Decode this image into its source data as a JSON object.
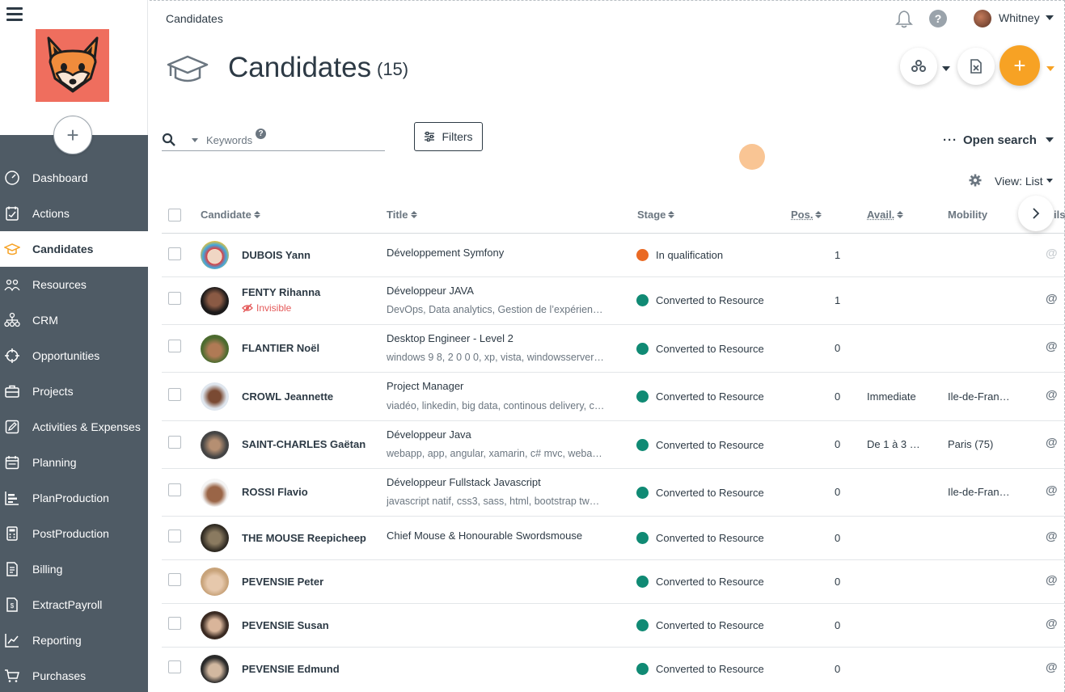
{
  "sidebar": {
    "add_label": "+",
    "items": [
      {
        "label": "Dashboard",
        "icon": "dashboard-icon"
      },
      {
        "label": "Actions",
        "icon": "actions-icon"
      },
      {
        "label": "Candidates",
        "icon": "graduation-cap-icon"
      },
      {
        "label": "Resources",
        "icon": "people-icon"
      },
      {
        "label": "CRM",
        "icon": "org-chart-icon"
      },
      {
        "label": "Opportunities",
        "icon": "target-icon"
      },
      {
        "label": "Projects",
        "icon": "briefcase-icon"
      },
      {
        "label": "Activities & Expenses",
        "icon": "edit-icon"
      },
      {
        "label": "Planning",
        "icon": "calendar-icon"
      },
      {
        "label": "PlanProduction",
        "icon": "bar-chart-icon"
      },
      {
        "label": "PostProduction",
        "icon": "calculator-icon"
      },
      {
        "label": "Billing",
        "icon": "invoice-icon"
      },
      {
        "label": "ExtractPayroll",
        "icon": "payroll-icon"
      },
      {
        "label": "Reporting",
        "icon": "line-chart-icon"
      },
      {
        "label": "Purchases",
        "icon": "cart-icon"
      }
    ],
    "active_index": 2
  },
  "header": {
    "breadcrumb": "Candidates",
    "user_name": "Whitney",
    "help_label": "?"
  },
  "page": {
    "title": "Candidates",
    "count": "(15)",
    "add_label": "+"
  },
  "search": {
    "placeholder": "Keywords",
    "help_label": "?",
    "filters_label": "Filters",
    "open_search_dots": "···",
    "open_search_label": "Open search",
    "view_label": "View: List"
  },
  "table": {
    "columns": {
      "candidate": "Candidate",
      "title": "Title",
      "stage": "Stage",
      "pos": "Pos.",
      "avail": "Avail.",
      "mobility": "Mobility",
      "cut": "ils"
    },
    "colors": {
      "in_qualification": "#ea6a24",
      "converted": "#108a74"
    },
    "rows": [
      {
        "name": "DUBOIS Yann",
        "title": "Développement Symfony",
        "skills": "",
        "stage": "In qualification",
        "pos": "1",
        "avail": "",
        "mobility": "",
        "invisible": "",
        "at": "@"
      },
      {
        "name": "FENTY Rihanna",
        "title": "Développeur JAVA",
        "skills": "DevOps, Data analytics, Gestion de l’expérien…",
        "stage": "Converted to Resource",
        "pos": "1",
        "avail": "",
        "mobility": "",
        "invisible": "Invisible",
        "at": "@"
      },
      {
        "name": "FLANTIER Noël",
        "title": "Desktop Engineer - Level 2",
        "skills": "windows 9 8, 2 0 0 0, xp, vista, windowsserver…",
        "stage": "Converted to Resource",
        "pos": "0",
        "avail": "",
        "mobility": "",
        "invisible": "",
        "at": "@"
      },
      {
        "name": "CROWL Jeannette",
        "title": "Project Manager",
        "skills": "viadéo, linkedin, big data, continous delivery, c…",
        "stage": "Converted to Resource",
        "pos": "0",
        "avail": "Immediate",
        "mobility": "Ile-de-Fran…",
        "invisible": "",
        "at": "@"
      },
      {
        "name": "SAINT-CHARLES Gaëtan",
        "title": "Développeur Java",
        "skills": "webapp, app, angular, xamarin, c# mvc, weba…",
        "stage": "Converted to Resource",
        "pos": "0",
        "avail": "De 1 à 3 …",
        "mobility": "Paris (75)",
        "invisible": "",
        "at": "@"
      },
      {
        "name": "ROSSI Flavio",
        "title": "Développeur Fullstack Javascript",
        "skills": "javascript natif, css3, sass, html, bootstrap tw…",
        "stage": "Converted to Resource",
        "pos": "0",
        "avail": "",
        "mobility": "Ile-de-Fran…",
        "invisible": "",
        "at": "@"
      },
      {
        "name": "THE MOUSE Reepicheep",
        "title": "Chief Mouse & Honourable Swordsmouse",
        "skills": "",
        "stage": "Converted to Resource",
        "pos": "0",
        "avail": "",
        "mobility": "",
        "invisible": "",
        "at": "@"
      },
      {
        "name": "PEVENSIE Peter",
        "title": "",
        "skills": "",
        "stage": "Converted to Resource",
        "pos": "0",
        "avail": "",
        "mobility": "",
        "invisible": "",
        "at": "@"
      },
      {
        "name": "PEVENSIE Susan",
        "title": "",
        "skills": "",
        "stage": "Converted to Resource",
        "pos": "0",
        "avail": "",
        "mobility": "",
        "invisible": "",
        "at": "@"
      },
      {
        "name": "PEVENSIE Edmund",
        "title": "",
        "skills": "",
        "stage": "Converted to Resource",
        "pos": "0",
        "avail": "",
        "mobility": "",
        "invisible": "",
        "at": "@"
      }
    ]
  }
}
